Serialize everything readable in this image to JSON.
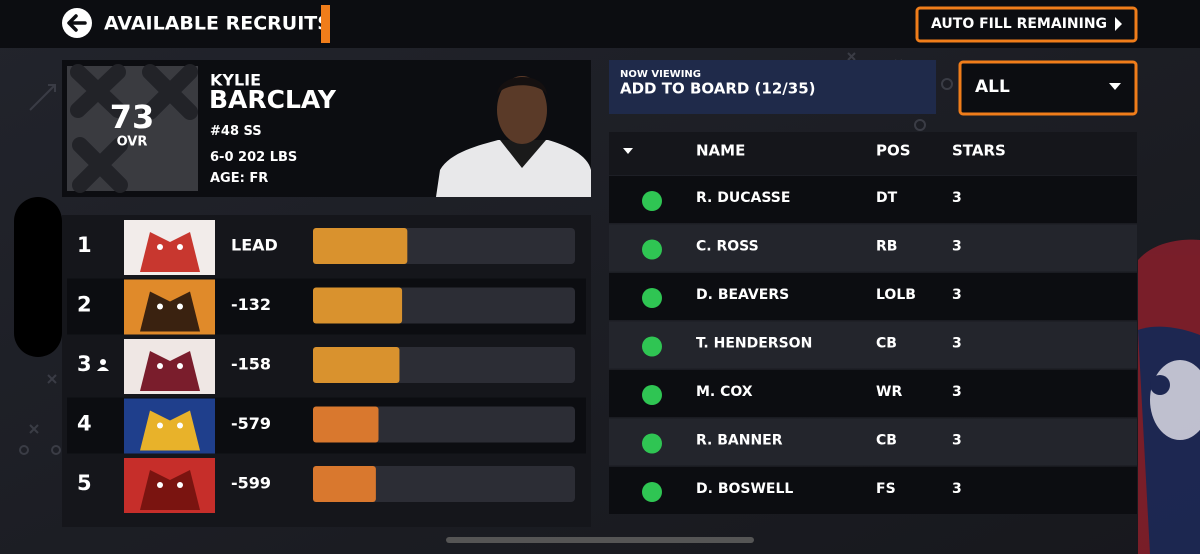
{
  "header": {
    "title": "AVAILABLE RECRUITS",
    "button": "AUTO FILL REMAINING"
  },
  "player": {
    "ovr": 73,
    "ovr_label": "OVR",
    "first_name": "KYLIE",
    "last_name": "BARCLAY",
    "jersey": "#48",
    "position": "SS",
    "height": "6-0",
    "weight": "202 LBS",
    "age_label": "AGE:",
    "age": "FR"
  },
  "schools": [
    {
      "rank": 1,
      "status": "LEAD",
      "interest": 36,
      "color": "#d9922e"
    },
    {
      "rank": 2,
      "status": "-132",
      "interest": 34,
      "color": "#d9922e"
    },
    {
      "rank": 3,
      "status": "-158",
      "interest": 33,
      "color": "#d9922e"
    },
    {
      "rank": 4,
      "status": "-579",
      "interest": 25,
      "color": "#d9782e"
    },
    {
      "rank": 5,
      "status": "-599",
      "interest": 24,
      "color": "#d9782e"
    }
  ],
  "viewing": {
    "label": "NOW VIEWING",
    "value": "ADD TO BOARD (12/35)"
  },
  "filter": "ALL",
  "table": {
    "columns": [
      "NAME",
      "POS",
      "STARS"
    ],
    "rows": [
      [
        "R. DUCASSE",
        "DT",
        3
      ],
      [
        "C. ROSS",
        "RB",
        3
      ],
      [
        "D. BEAVERS",
        "LOLB",
        3
      ],
      [
        "T. HENDERSON",
        "CB",
        3
      ],
      [
        "M. COX",
        "WR",
        3
      ],
      [
        "R. BANNER",
        "CB",
        3
      ],
      [
        "D. BOSWELL",
        "FS",
        3
      ]
    ]
  }
}
